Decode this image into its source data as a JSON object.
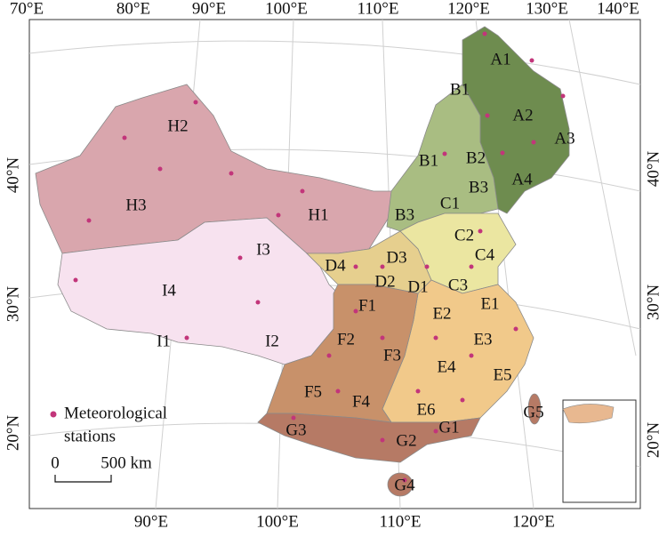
{
  "axes": {
    "top": [
      "70°E",
      "80°E",
      "90°E",
      "100°E",
      "110°E",
      "120°E",
      "130°E",
      "140°E"
    ],
    "bottom": [
      "90°E",
      "100°E",
      "110°E",
      "120°E"
    ],
    "left": [
      "40°N",
      "30°N",
      "20°N"
    ],
    "right": [
      "40°N",
      "30°N",
      "20°N"
    ]
  },
  "regions": [
    "A1",
    "B1",
    "A2",
    "A3",
    "B1",
    "B2",
    "B3",
    "A4",
    "H2",
    "H3",
    "H1",
    "B3",
    "C1",
    "C2",
    "C4",
    "I3",
    "D4",
    "D3",
    "D2",
    "D1",
    "C3",
    "I4",
    "F1",
    "E2",
    "E1",
    "I1",
    "I2",
    "F2",
    "E3",
    "F3",
    "E4",
    "E5",
    "F5",
    "F4",
    "E6",
    "G5",
    "G1",
    "G3",
    "G2",
    "G4"
  ],
  "legend": {
    "lines": [
      "Meteorological",
      "stations"
    ]
  },
  "scale": {
    "start": "0",
    "end": "500 km"
  }
}
